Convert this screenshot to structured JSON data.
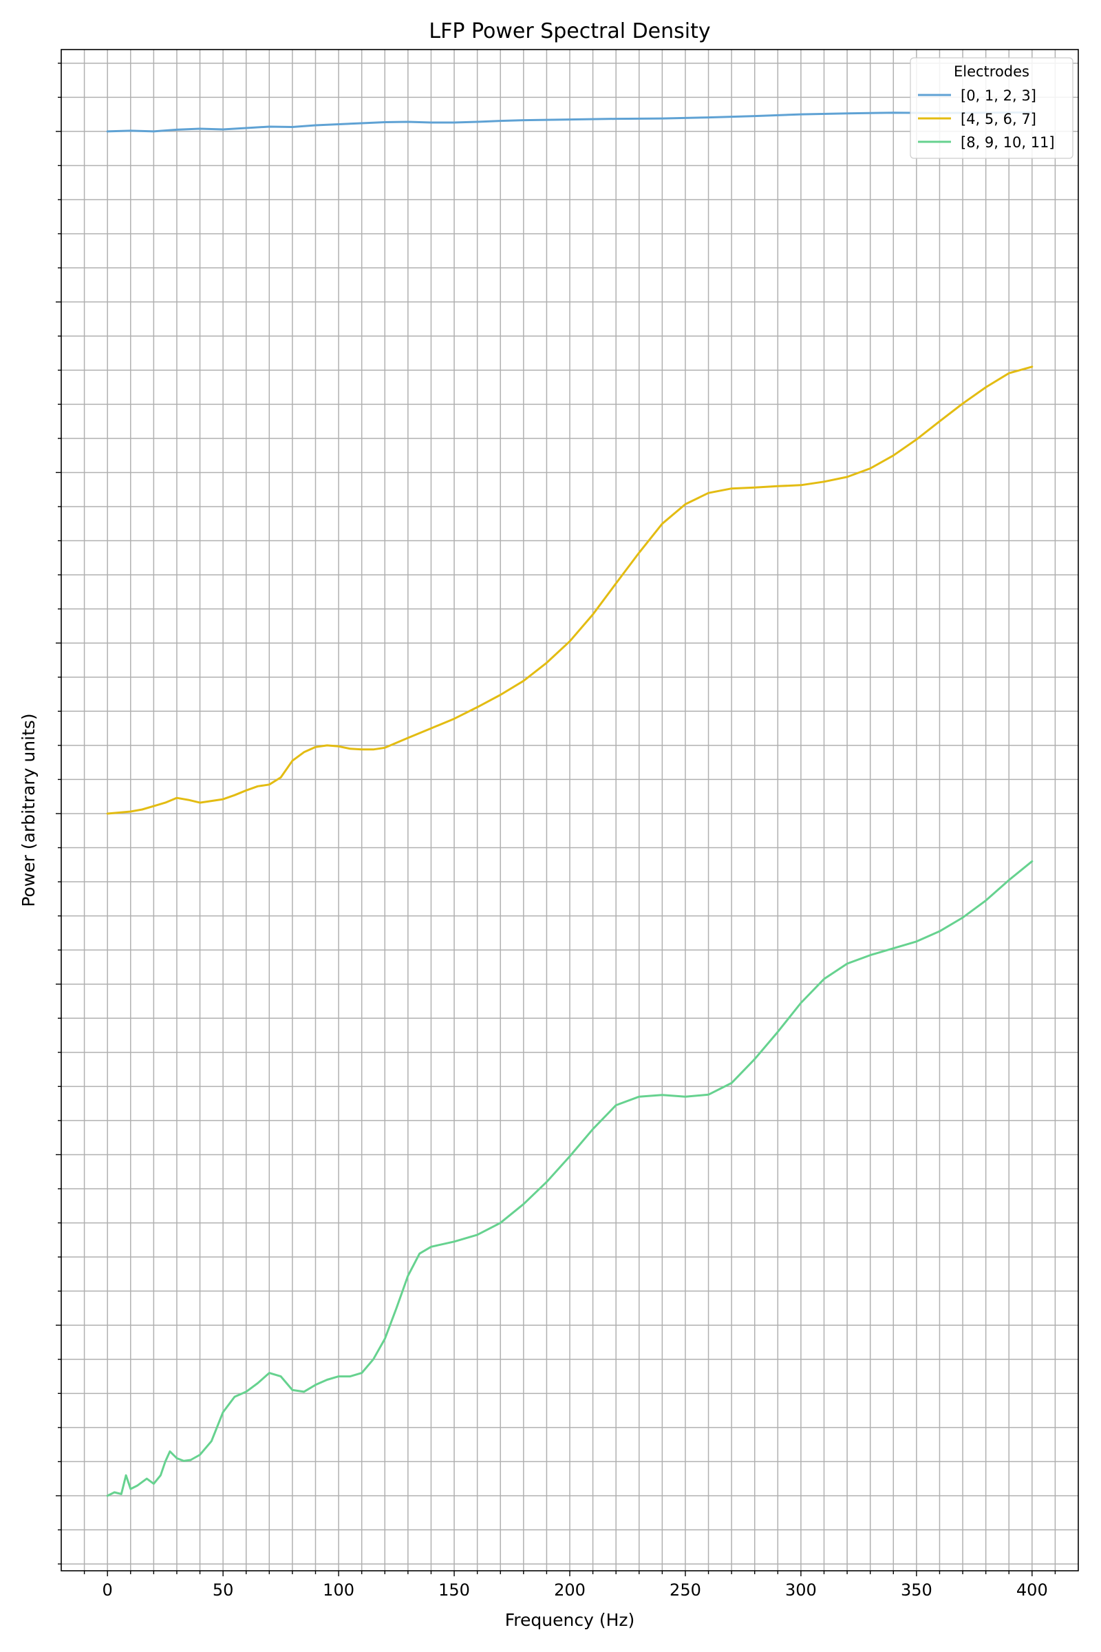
{
  "chart_data": {
    "type": "line",
    "title": "LFP Power Spectral Density",
    "xlabel": "Frequency (Hz)",
    "ylabel": "Power (arbitrary units)",
    "xlim": [
      -20,
      420
    ],
    "ylim": [
      -2.2,
      42.4
    ],
    "x_ticks": [
      0,
      50,
      100,
      150,
      200,
      250,
      300,
      350,
      400
    ],
    "x_tick_labels": [
      "0",
      "50",
      "100",
      "150",
      "200",
      "250",
      "300",
      "350",
      "400"
    ],
    "y_tick_labels_shown": false,
    "grid": true,
    "grid_minor": true,
    "legend": {
      "title": "Electrodes",
      "placement": "top-right"
    },
    "series": [
      {
        "name": "[0, 1, 2, 3]",
        "color": "#5fa2d4",
        "x": [
          0,
          10,
          20,
          30,
          40,
          50,
          60,
          70,
          80,
          90,
          100,
          110,
          120,
          130,
          140,
          150,
          160,
          170,
          180,
          190,
          200,
          220,
          240,
          260,
          280,
          300,
          320,
          340,
          360,
          380,
          400
        ],
        "y": [
          40.0,
          40.02,
          40.0,
          40.05,
          40.08,
          40.06,
          40.1,
          40.14,
          40.13,
          40.18,
          40.21,
          40.24,
          40.27,
          40.28,
          40.26,
          40.26,
          40.28,
          40.31,
          40.33,
          40.34,
          40.35,
          40.37,
          40.38,
          40.41,
          40.45,
          40.5,
          40.53,
          40.55,
          40.54,
          40.55,
          40.56
        ]
      },
      {
        "name": "[4, 5, 6, 7]",
        "color": "#e3bc12",
        "x": [
          0,
          5,
          10,
          15,
          20,
          25,
          30,
          35,
          40,
          45,
          50,
          55,
          60,
          65,
          70,
          75,
          80,
          85,
          90,
          95,
          100,
          105,
          110,
          115,
          120,
          130,
          140,
          150,
          160,
          170,
          180,
          190,
          200,
          210,
          220,
          230,
          240,
          250,
          260,
          270,
          280,
          290,
          300,
          310,
          320,
          330,
          340,
          350,
          360,
          370,
          380,
          390,
          400
        ],
        "y": [
          20.0,
          20.03,
          20.06,
          20.12,
          20.22,
          20.32,
          20.46,
          20.4,
          20.32,
          20.37,
          20.42,
          20.54,
          20.68,
          20.8,
          20.85,
          21.06,
          21.55,
          21.8,
          21.95,
          22.0,
          21.97,
          21.9,
          21.88,
          21.88,
          21.93,
          22.22,
          22.5,
          22.78,
          23.12,
          23.48,
          23.89,
          24.42,
          25.05,
          25.84,
          26.75,
          27.65,
          28.5,
          29.07,
          29.4,
          29.53,
          29.56,
          29.6,
          29.63,
          29.73,
          29.87,
          30.12,
          30.5,
          30.97,
          31.5,
          32.02,
          32.5,
          32.91,
          33.1
        ]
      },
      {
        "name": "[8, 9, 10, 11]",
        "color": "#66d28f",
        "x": [
          0,
          3,
          6,
          8,
          10,
          13,
          17,
          20,
          23,
          25,
          27,
          30,
          33,
          36,
          40,
          45,
          50,
          55,
          60,
          65,
          70,
          75,
          80,
          85,
          90,
          95,
          100,
          105,
          110,
          115,
          120,
          125,
          130,
          135,
          140,
          150,
          160,
          170,
          180,
          190,
          200,
          210,
          220,
          230,
          240,
          250,
          260,
          270,
          280,
          290,
          300,
          310,
          320,
          330,
          340,
          350,
          360,
          370,
          380,
          390,
          400
        ],
        "y": [
          0.0,
          0.1,
          0.05,
          0.6,
          0.2,
          0.3,
          0.5,
          0.35,
          0.6,
          1.0,
          1.3,
          1.1,
          1.02,
          1.05,
          1.2,
          1.6,
          2.45,
          2.9,
          3.05,
          3.3,
          3.6,
          3.5,
          3.1,
          3.05,
          3.25,
          3.4,
          3.5,
          3.5,
          3.6,
          4.0,
          4.6,
          5.5,
          6.45,
          7.1,
          7.3,
          7.45,
          7.65,
          8.0,
          8.55,
          9.2,
          9.95,
          10.75,
          11.45,
          11.7,
          11.75,
          11.7,
          11.76,
          12.1,
          12.8,
          13.6,
          14.45,
          15.15,
          15.6,
          15.85,
          16.05,
          16.25,
          16.55,
          16.95,
          17.45,
          18.05,
          18.6
        ]
      }
    ]
  }
}
